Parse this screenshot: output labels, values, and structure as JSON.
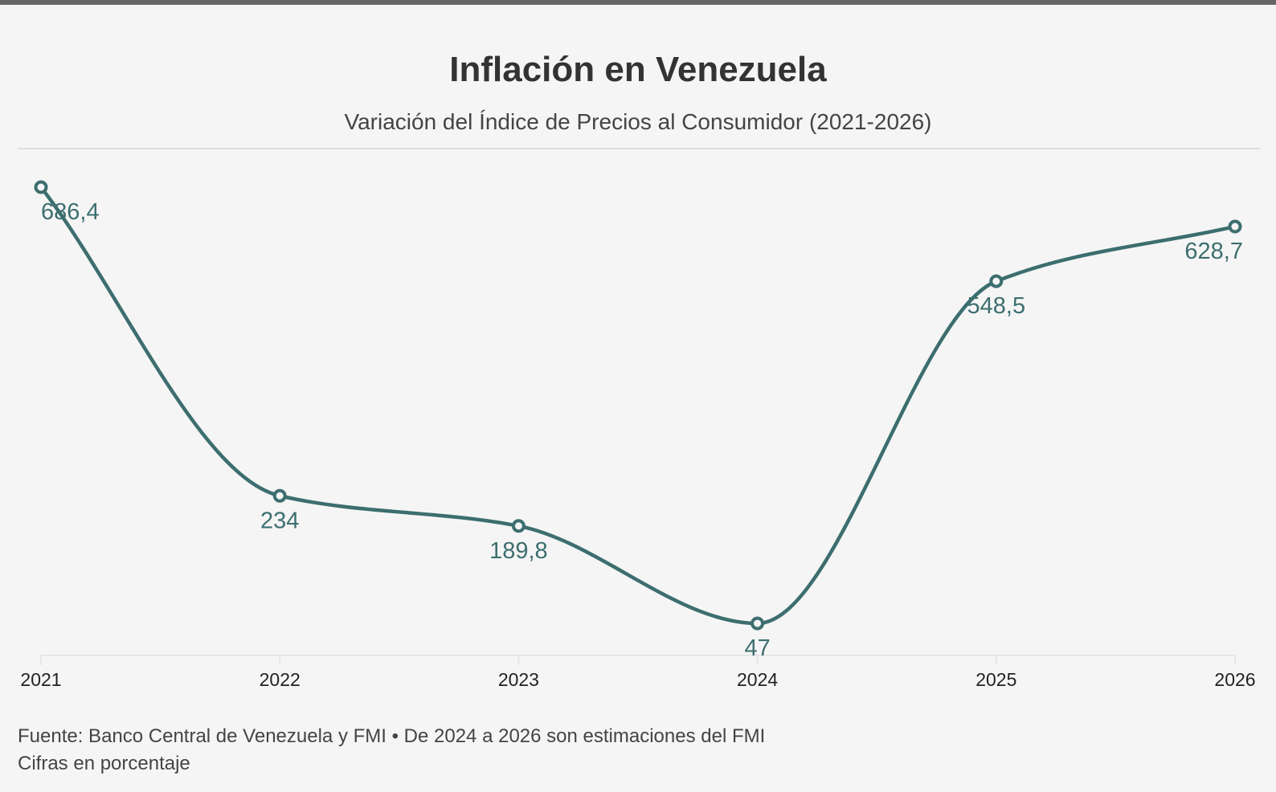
{
  "chart_data": {
    "type": "line",
    "title": "Inflación en Venezuela",
    "subtitle": "Variación del Índice de Precios al Consumidor (2021-2026)",
    "categories": [
      "2021",
      "2022",
      "2023",
      "2024",
      "2025",
      "2026"
    ],
    "values": [
      686.4,
      234,
      189.8,
      47,
      548.5,
      628.7
    ],
    "data_labels": [
      "686,4",
      "234",
      "189,8",
      "47",
      "548,5",
      "628,7"
    ],
    "ylim": [
      0,
      686.4
    ],
    "grid": false,
    "color": "#3d6e6f"
  },
  "footer": {
    "source": "Fuente: Banco Central de Venezuela y FMI • De 2024 a 2026 son estimaciones del FMI",
    "note": "Cifras en porcentaje"
  }
}
